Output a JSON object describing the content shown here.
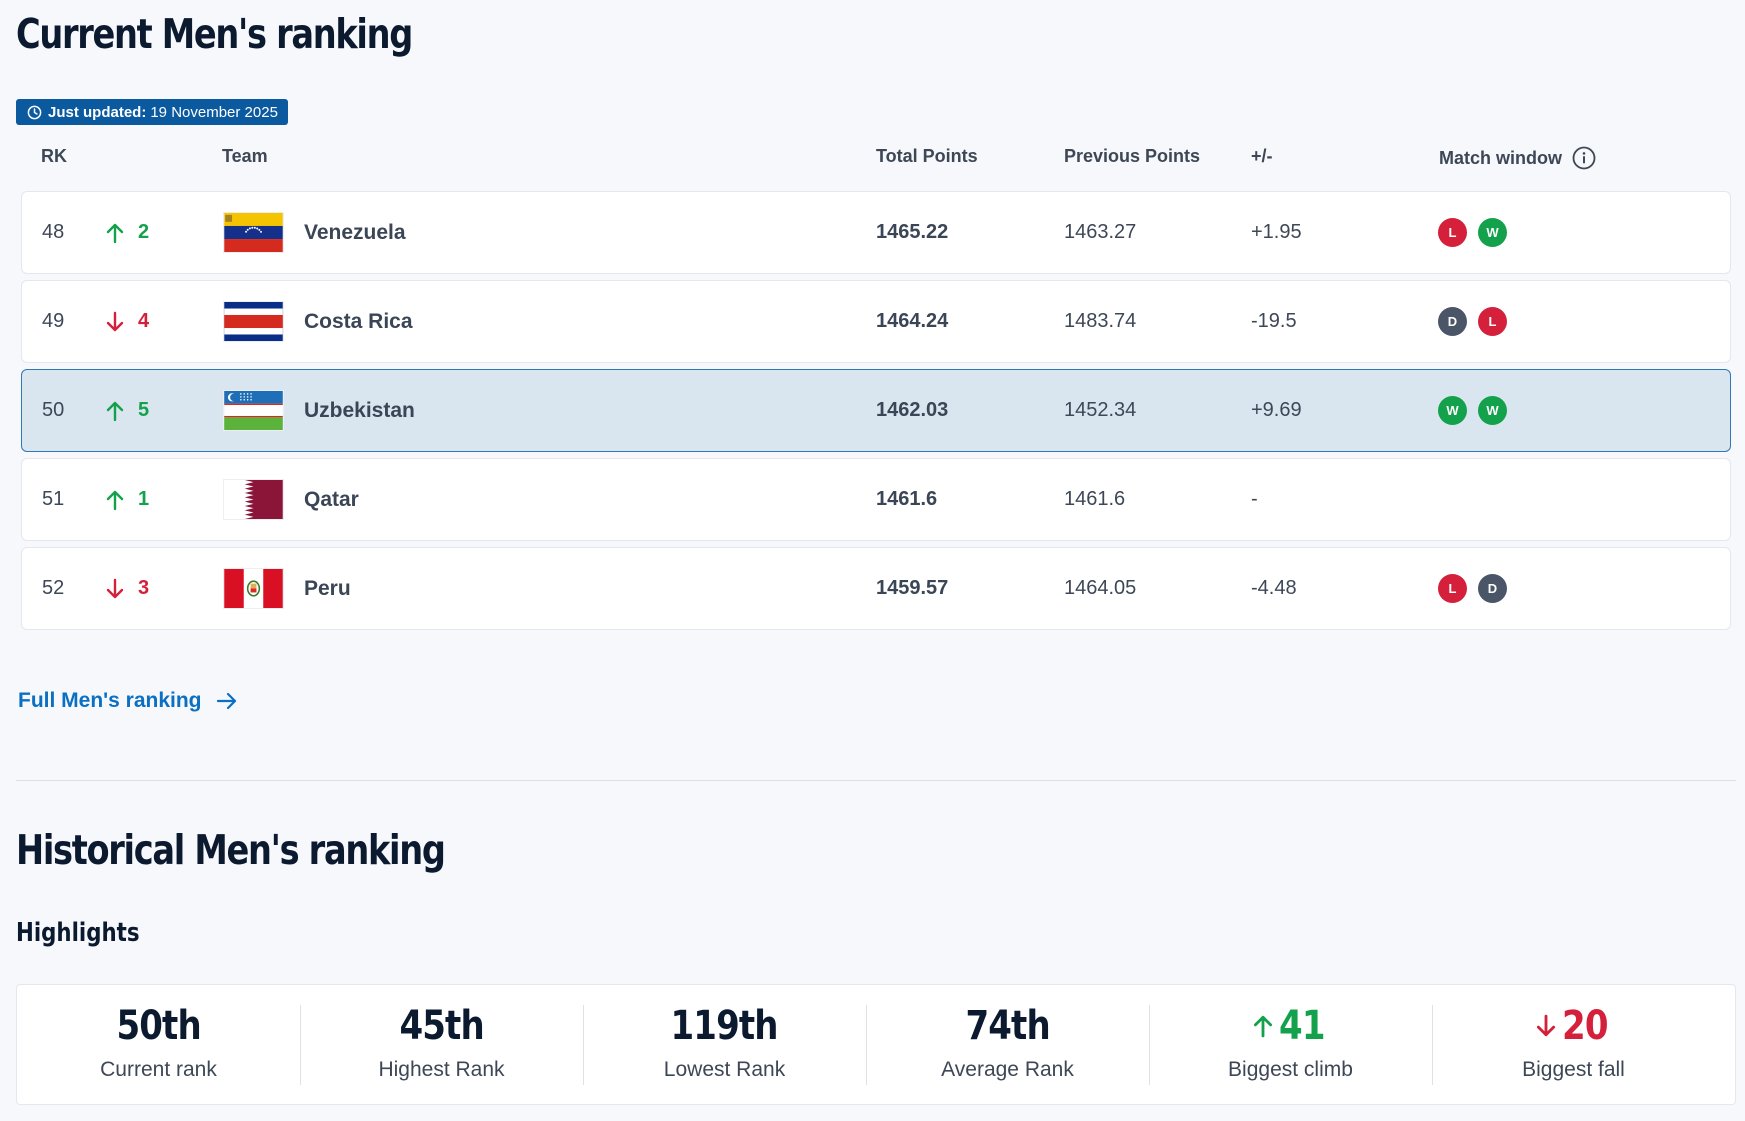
{
  "current": {
    "title": "Current Men's ranking",
    "updated_label": "Just updated:",
    "updated_date": "19 November 2025",
    "headers": {
      "rk": "RK",
      "team": "Team",
      "total": "Total Points",
      "previous": "Previous Points",
      "diff": "+/-",
      "window": "Match window"
    },
    "rows": [
      {
        "rank": "48",
        "dir": "up",
        "move": "2",
        "team": "Venezuela",
        "flag": "venezuela",
        "total": "1465.22",
        "previous": "1463.27",
        "diff": "+1.95",
        "results": [
          "L",
          "W"
        ]
      },
      {
        "rank": "49",
        "dir": "down",
        "move": "4",
        "team": "Costa Rica",
        "flag": "costa-rica",
        "total": "1464.24",
        "previous": "1483.74",
        "diff": "-19.5",
        "results": [
          "D",
          "L"
        ]
      },
      {
        "rank": "50",
        "dir": "up",
        "move": "5",
        "team": "Uzbekistan",
        "flag": "uzbekistan",
        "total": "1462.03",
        "previous": "1452.34",
        "diff": "+9.69",
        "results": [
          "W",
          "W"
        ],
        "highlighted": true
      },
      {
        "rank": "51",
        "dir": "up",
        "move": "1",
        "team": "Qatar",
        "flag": "qatar",
        "total": "1461.6",
        "previous": "1461.6",
        "diff": "-",
        "results": []
      },
      {
        "rank": "52",
        "dir": "down",
        "move": "3",
        "team": "Peru",
        "flag": "peru",
        "total": "1459.57",
        "previous": "1464.05",
        "diff": "-4.48",
        "results": [
          "L",
          "D"
        ]
      }
    ],
    "full_link": "Full Men's ranking"
  },
  "historical": {
    "title": "Historical Men's ranking",
    "subtitle": "Highlights",
    "stats": [
      {
        "value": "50th",
        "label": "Current rank"
      },
      {
        "value": "45th",
        "label": "Highest Rank"
      },
      {
        "value": "119th",
        "label": "Lowest Rank"
      },
      {
        "value": "74th",
        "label": "Average Rank"
      },
      {
        "value": "41",
        "label": "Biggest climb",
        "dir": "up"
      },
      {
        "value": "20",
        "label": "Biggest fall",
        "dir": "down"
      }
    ]
  },
  "colors": {
    "accent": "#0b5aa0",
    "link": "#0b6fc2",
    "up": "#13a24b",
    "down": "#d4203b",
    "draw": "#4a5568",
    "highlight_row": "#d9e6f0"
  }
}
